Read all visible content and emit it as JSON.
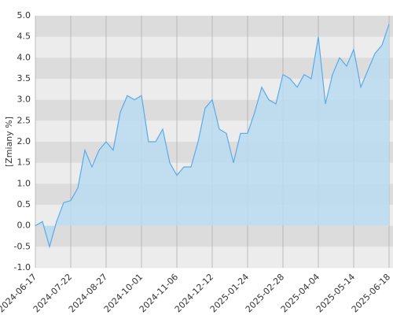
{
  "chart_data": {
    "type": "area",
    "y_label": "[Zmiany %]",
    "categories": [
      "2024-06-17",
      null,
      null,
      null,
      null,
      "2024-07-22",
      null,
      null,
      null,
      null,
      "2024-08-27",
      null,
      null,
      null,
      null,
      "2024-10-01",
      null,
      null,
      null,
      null,
      "2024-11-06",
      null,
      null,
      null,
      null,
      "2024-12-12",
      null,
      null,
      null,
      null,
      "2025-01-24",
      null,
      null,
      null,
      null,
      "2025-02-28",
      null,
      null,
      null,
      null,
      "2025-04-04",
      null,
      null,
      null,
      null,
      "2025-05-14",
      null,
      null,
      null,
      null,
      "2025-06-18"
    ],
    "values": [
      0.0,
      0.1,
      -0.5,
      0.1,
      0.55,
      0.6,
      0.9,
      1.8,
      1.4,
      1.8,
      2.0,
      1.8,
      2.7,
      3.1,
      3.0,
      3.1,
      2.0,
      2.0,
      2.3,
      1.5,
      1.2,
      1.4,
      1.4,
      2.0,
      2.8,
      3.0,
      2.3,
      2.2,
      1.5,
      2.2,
      2.2,
      2.7,
      3.3,
      3.0,
      2.9,
      3.6,
      3.5,
      3.3,
      3.6,
      3.5,
      4.5,
      2.9,
      3.6,
      4.0,
      3.8,
      4.2,
      3.3,
      3.7,
      4.1,
      4.3,
      4.8
    ],
    "color": "#5aaaea",
    "fill": "#b8dcf0",
    "ylim": [
      -1,
      5
    ],
    "yticks": [
      {
        "value": -1,
        "label": "-1.0"
      },
      {
        "value": -0.5,
        "label": "-0.5"
      },
      {
        "value": 0,
        "label": "0.0"
      },
      {
        "value": 0.5,
        "label": "0.5"
      },
      {
        "value": 1,
        "label": "1.0"
      },
      {
        "value": 1.5,
        "label": "1.5"
      },
      {
        "value": 2,
        "label": "2.0"
      },
      {
        "value": 2.5,
        "label": "2.5"
      },
      {
        "value": 3,
        "label": "3.0"
      },
      {
        "value": 3.5,
        "label": "3.5"
      },
      {
        "value": 4,
        "label": "4.0"
      },
      {
        "value": 4.5,
        "label": "4.5"
      },
      {
        "value": 5,
        "label": "5.0"
      }
    ],
    "band_colors": [
      "#dcdcdc",
      "#ececec"
    ]
  }
}
